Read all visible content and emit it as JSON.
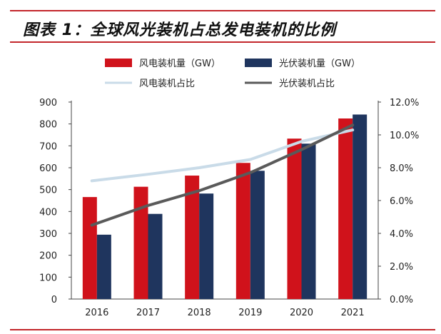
{
  "title": "图表 1：全球风光装机占总发电装机的比例",
  "chart_data": {
    "type": "bar",
    "categories": [
      "2016",
      "2017",
      "2018",
      "2019",
      "2020",
      "2021"
    ],
    "series": [
      {
        "name": "风电装机量（GW）",
        "kind": "bar",
        "axis": "left",
        "color": "#d0121b",
        "values": [
          466,
          513,
          564,
          622,
          733,
          825
        ]
      },
      {
        "name": "光伏装机量（GW）",
        "kind": "bar",
        "axis": "left",
        "color": "#1f355e",
        "values": [
          294,
          389,
          482,
          586,
          710,
          843
        ]
      },
      {
        "name": "风电装机占比",
        "kind": "line",
        "axis": "right",
        "color": "#c9dbe8",
        "values": [
          7.2,
          7.6,
          8.0,
          8.5,
          9.6,
          10.3
        ]
      },
      {
        "name": "光伏装机占比",
        "kind": "line",
        "axis": "right",
        "color": "#5a5a5a",
        "values": [
          4.5,
          5.7,
          6.6,
          7.7,
          9.1,
          10.6
        ]
      }
    ],
    "y_left": {
      "min": 0,
      "max": 900,
      "step": 100,
      "ticks": [
        "0",
        "100",
        "200",
        "300",
        "400",
        "500",
        "600",
        "700",
        "800",
        "900"
      ]
    },
    "y_right": {
      "min": 0,
      "max": 12,
      "step": 2,
      "ticks": [
        "0.0%",
        "2.0%",
        "4.0%",
        "6.0%",
        "8.0%",
        "10.0%",
        "12.0%"
      ]
    },
    "legend_position": "top",
    "grid": false
  }
}
